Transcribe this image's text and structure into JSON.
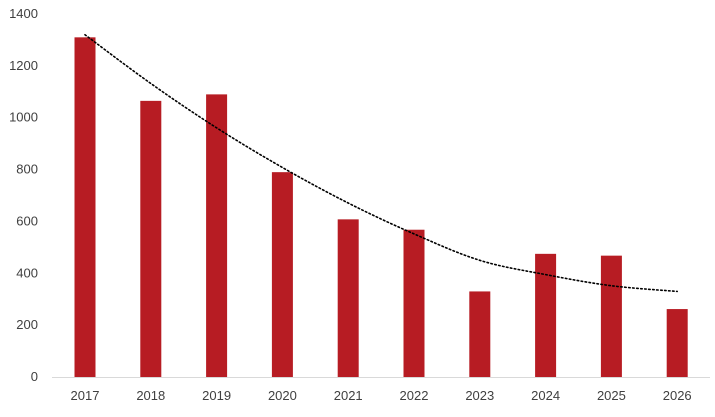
{
  "chart_data": {
    "type": "bar",
    "title": "",
    "xlabel": "",
    "ylabel": "",
    "categories": [
      "2017",
      "2018",
      "2019",
      "2020",
      "2021",
      "2022",
      "2023",
      "2024",
      "2025",
      "2026"
    ],
    "values": [
      1310,
      1065,
      1090,
      790,
      608,
      568,
      330,
      475,
      468,
      262
    ],
    "ylim": [
      0,
      1400
    ],
    "yticks": [
      0,
      200,
      400,
      600,
      800,
      1000,
      1200,
      1400
    ],
    "grid": false,
    "legend": "none",
    "bar_color": "#B71C23",
    "trendline": {
      "type": "polynomial",
      "style": "dotted",
      "color": "#000000",
      "values": [
        1320,
        1132,
        961,
        808,
        671,
        552,
        450,
        395,
        352,
        330
      ]
    }
  }
}
